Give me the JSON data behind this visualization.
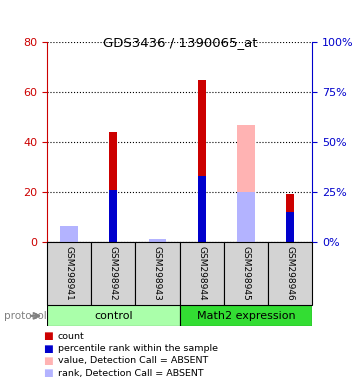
{
  "title": "GDS3436 / 1390065_at",
  "samples": [
    "GSM298941",
    "GSM298942",
    "GSM298943",
    "GSM298944",
    "GSM298945",
    "GSM298946"
  ],
  "ylim_left": [
    0,
    80
  ],
  "ylim_right": [
    0,
    100
  ],
  "yticks_left": [
    0,
    20,
    40,
    60,
    80
  ],
  "yticks_right": [
    0,
    25,
    50,
    75,
    100
  ],
  "red_values": [
    0,
    44,
    0,
    65,
    0,
    19
  ],
  "blue_values": [
    0,
    26,
    0,
    33,
    0,
    15
  ],
  "pink_values": [
    5,
    0,
    0,
    0,
    47,
    0
  ],
  "lblue_values": [
    8,
    0,
    1.5,
    0,
    25,
    0
  ],
  "red_color": "#cc0000",
  "blue_color": "#0000cc",
  "pink_color": "#ffb3b3",
  "lblue_color": "#b3b3ff",
  "bar_width": 0.18,
  "group1_label": "control",
  "group2_label": "Math2 expression",
  "legend_items": [
    {
      "label": "count",
      "color": "#cc0000"
    },
    {
      "label": "percentile rank within the sample",
      "color": "#0000cc"
    },
    {
      "label": "value, Detection Call = ABSENT",
      "color": "#ffb3b3"
    },
    {
      "label": "rank, Detection Call = ABSENT",
      "color": "#b3b3ff"
    }
  ],
  "protocol_label": "protocol",
  "left_axis_color": "#cc0000",
  "right_axis_color": "#0000cc",
  "background_color": "#ffffff",
  "plot_bg_color": "#ffffff",
  "label_area_color": "#d3d3d3",
  "control_color": "#aaffaa",
  "math2_color": "#33dd33"
}
